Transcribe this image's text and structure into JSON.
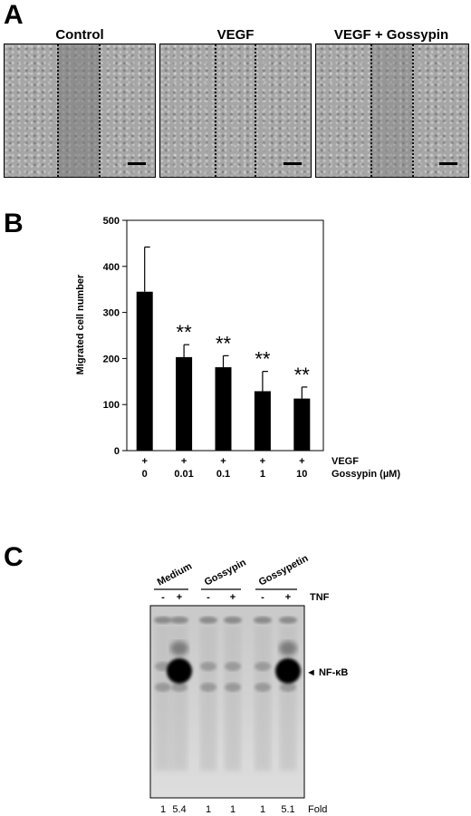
{
  "panel_a": {
    "letter": "A",
    "titles": [
      "Control",
      "VEGF",
      "VEGF + Gossypin"
    ]
  },
  "panel_b": {
    "letter": "B",
    "rows": [
      {
        "signs": [
          "+",
          "+",
          "+",
          "+",
          "+"
        ],
        "label": "VEGF"
      },
      {
        "signs": [
          "0",
          "0.01",
          "0.1",
          "1",
          "10"
        ],
        "label": "Gossypin (µM)"
      }
    ]
  },
  "panel_c": {
    "letter": "C",
    "groups": [
      "Medium",
      "Gossypin",
      "Gossypetin"
    ],
    "lane_signs": [
      "-",
      "+",
      "-",
      "+",
      "-",
      "+"
    ],
    "tnf_label": "TNF",
    "band_label": "◄ NF-κB",
    "fold_values": [
      "1",
      "5.4",
      "1",
      "1",
      "1",
      "5.1"
    ],
    "fold_label": "Fold"
  },
  "chart_data": {
    "type": "bar",
    "title": "",
    "xlabel": "",
    "ylabel": "Migrated cell number",
    "categories": [
      "0",
      "0.01",
      "0.1",
      "1",
      "10"
    ],
    "values": [
      345,
      203,
      181,
      129,
      113
    ],
    "errors": [
      97,
      27,
      25,
      43,
      25
    ],
    "significance": [
      "",
      "**",
      "**",
      "**",
      "**"
    ],
    "ylim": [
      0,
      500
    ],
    "yticks": [
      0,
      100,
      200,
      300,
      400,
      500
    ],
    "bar_color": "#000000",
    "grid": false
  }
}
